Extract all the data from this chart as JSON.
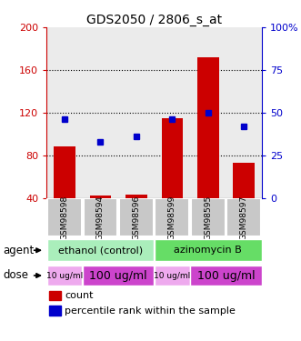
{
  "title": "GDS2050 / 2806_s_at",
  "samples": [
    "GSM98598",
    "GSM98594",
    "GSM98596",
    "GSM98599",
    "GSM98595",
    "GSM98597"
  ],
  "counts": [
    88,
    42,
    43,
    115,
    172,
    73
  ],
  "percentiles": [
    46,
    33,
    36,
    46,
    50,
    42
  ],
  "ylim_left": [
    40,
    200
  ],
  "ylim_right": [
    0,
    100
  ],
  "yticks_left": [
    40,
    80,
    120,
    160,
    200
  ],
  "yticks_right": [
    0,
    25,
    50,
    75,
    100
  ],
  "bar_color": "#cc0000",
  "dot_color": "#0000cc",
  "bar_width": 0.6,
  "agent_ethanol_color": "#aaeebb",
  "agent_azino_color": "#66dd66",
  "dose_light_color": "#eeaaee",
  "dose_dark_color": "#cc44cc",
  "sample_box_color": "#c8c8c8",
  "left_axis_color": "#cc0000",
  "right_axis_color": "#0000cc",
  "background_color": "#ffffff",
  "plot_bg_color": "#ffffff"
}
